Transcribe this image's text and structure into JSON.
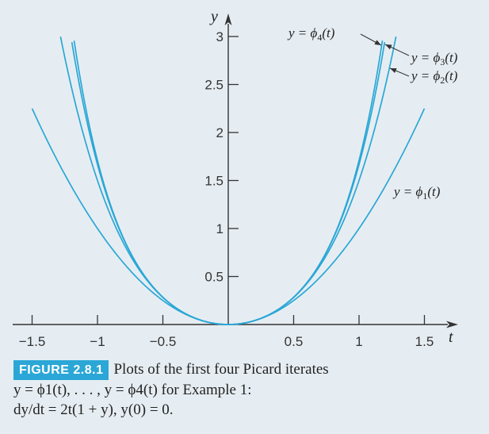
{
  "chart_data": {
    "type": "line",
    "xlabel": "t",
    "ylabel": "y",
    "xlim": [
      -1.5,
      1.5
    ],
    "ylim": [
      0,
      3
    ],
    "x_ticks": [
      -1.5,
      -1,
      -0.5,
      0.5,
      1,
      1.5
    ],
    "x_tick_labels": [
      "−1.5",
      "−1",
      "−0.5",
      "0.5",
      "1",
      "1.5"
    ],
    "y_ticks": [
      0.5,
      1,
      1.5,
      2,
      2.5,
      3
    ],
    "y_tick_labels": [
      "0.5",
      "1",
      "1.5",
      "2",
      "2.5",
      "3"
    ],
    "series": [
      {
        "name": "y = ϕ1(t)",
        "label_main": "y = ϕ",
        "label_sub": "1",
        "label_tail": "(t)",
        "coefficients": [
          0,
          1
        ],
        "t_range": [
          -1.5,
          1.5
        ]
      },
      {
        "name": "y = ϕ2(t)",
        "label_main": "y = ϕ",
        "label_sub": "2",
        "label_tail": "(t)",
        "coefficients": [
          0,
          1,
          0.5
        ],
        "t_range": [
          -1.3,
          1.3
        ]
      },
      {
        "name": "y = ϕ3(t)",
        "label_main": "y = ϕ",
        "label_sub": "3",
        "label_tail": "(t)",
        "coefficients": [
          0,
          1,
          0.5,
          0.16667
        ],
        "t_range": [
          -1.3,
          1.3
        ]
      },
      {
        "name": "y = ϕ4(t)",
        "label_main": "y = ϕ",
        "label_sub": "4",
        "label_tail": "(t)",
        "coefficients": [
          0,
          1,
          0.5,
          0.16667,
          0.041667
        ],
        "t_range": [
          -1.3,
          1.3
        ]
      }
    ]
  },
  "caption": {
    "badge": "FIGURE 2.8.1",
    "line1": "Plots of the first four Picard iterates",
    "line2": "y = ϕ1(t), . . . , y = ϕ4(t) for Example 1:",
    "line3": "dy/dt = 2t(1 + y),  y(0) = 0."
  },
  "colors": {
    "curve": "#2aa7d6",
    "axis": "#333333",
    "background": "#e6edf2",
    "badge": "#2aa7d6"
  }
}
